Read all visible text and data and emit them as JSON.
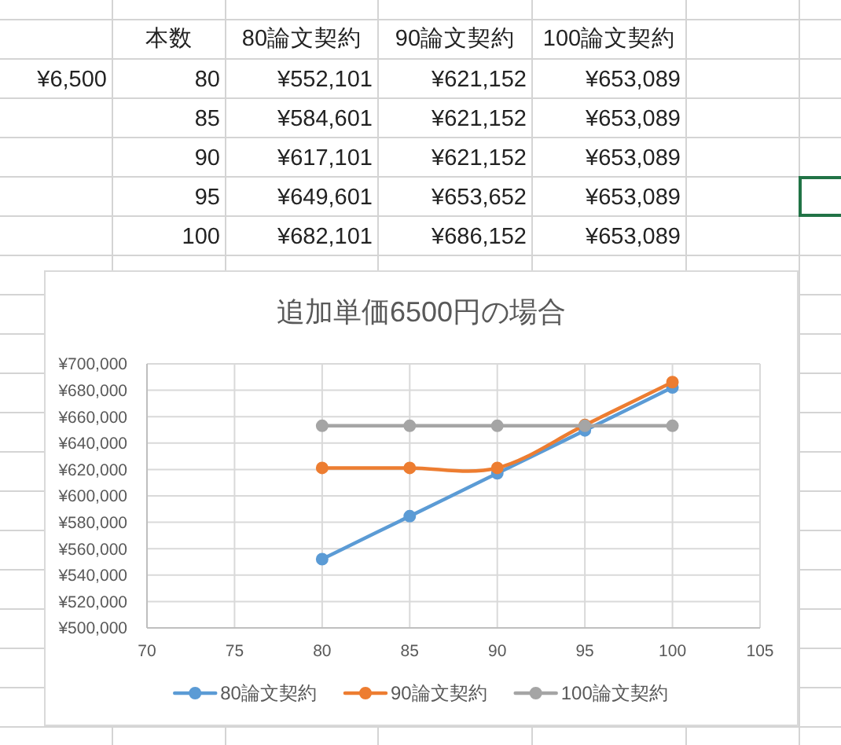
{
  "chart_data": [
    {
      "type": "heatmap",
      "ylabel": "本数",
      "categories": [
        "80論文契約",
        "90論文契約",
        "100論文契約"
      ],
      "y_categories": [
        "80",
        "85",
        "90",
        "95",
        "100"
      ],
      "cells": [
        [
          null,
          null,
          null
        ],
        [
          null,
          null,
          null
        ],
        [
          null,
          null,
          null
        ],
        [
          null,
          null,
          null
        ],
        [
          null,
          null,
          null
        ]
      ],
      "cell_labels": [
        [
          "¥552,101",
          "¥621,152",
          "¥653,089"
        ],
        [
          "¥584,601",
          "¥621,152",
          "¥653,089"
        ],
        [
          "¥617,101",
          "¥621,152",
          "¥653,089"
        ],
        [
          "¥649,601",
          "¥653,652",
          "¥653,089"
        ],
        [
          "¥682,101",
          "¥686,152",
          "¥653,089"
        ]
      ],
      "annotations": [
        "¥6,500"
      ]
    },
    {
      "type": "line",
      "title": "追加単価6500円の場合",
      "x": [
        80,
        85,
        90,
        95,
        100
      ],
      "series": [
        {
          "name": "80論文契約",
          "color": "#5b9bd5",
          "values": [
            552101,
            584601,
            617101,
            649601,
            682101
          ]
        },
        {
          "name": "90論文契約",
          "color": "#ed7d31",
          "values": [
            621152,
            621152,
            621152,
            653652,
            686152
          ]
        },
        {
          "name": "100論文契約",
          "color": "#a5a5a5",
          "values": [
            653089,
            653089,
            653089,
            653089,
            653089
          ]
        }
      ],
      "xlim": [
        70,
        105
      ],
      "xticks": [
        70,
        75,
        80,
        85,
        90,
        95,
        100,
        105
      ],
      "ylim": [
        500000,
        700000
      ],
      "yticks": [
        {
          "value": 500000,
          "label": "¥500,000"
        },
        {
          "value": 520000,
          "label": "¥520,000"
        },
        {
          "value": 540000,
          "label": "¥540,000"
        },
        {
          "value": 560000,
          "label": "¥560,000"
        },
        {
          "value": 580000,
          "label": "¥580,000"
        },
        {
          "value": 600000,
          "label": "¥600,000"
        },
        {
          "value": 620000,
          "label": "¥620,000"
        },
        {
          "value": 640000,
          "label": "¥640,000"
        },
        {
          "value": 660000,
          "label": "¥660,000"
        },
        {
          "value": 680000,
          "label": "¥680,000"
        },
        {
          "value": 700000,
          "label": "¥700,000"
        }
      ],
      "grid": true,
      "legend": "bottom",
      "marker": "circle"
    }
  ]
}
